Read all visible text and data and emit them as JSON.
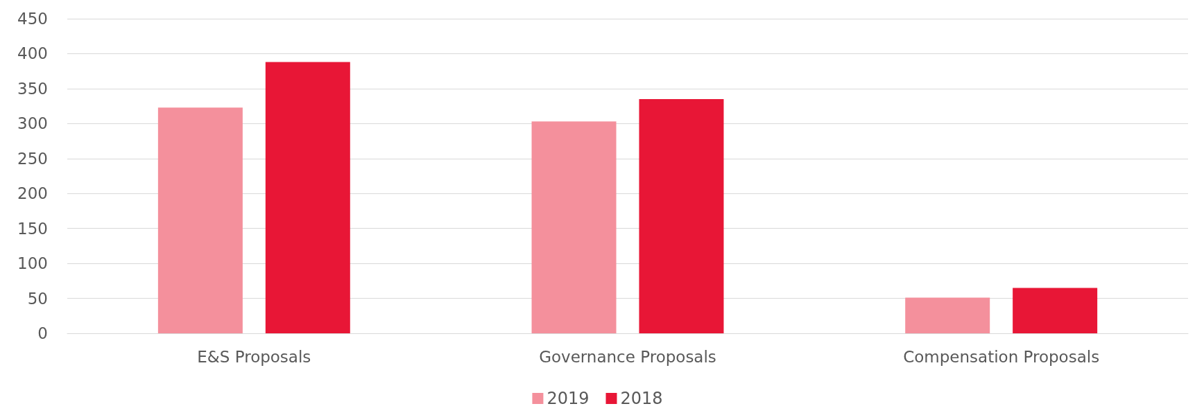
{
  "chart_data": {
    "type": "bar",
    "categories": [
      "E&S Proposals",
      "Governance Proposals",
      "Compensation Proposals"
    ],
    "series": [
      {
        "name": "2019",
        "color": "#f4909c",
        "values": [
          323,
          303,
          51
        ]
      },
      {
        "name": "2018",
        "color": "#e81636",
        "values": [
          388,
          335,
          65
        ]
      }
    ],
    "ylim": [
      0,
      450
    ],
    "yticks": [
      0,
      50,
      100,
      150,
      200,
      250,
      300,
      350,
      400,
      450
    ],
    "grid": "y",
    "legend": "bottom"
  }
}
